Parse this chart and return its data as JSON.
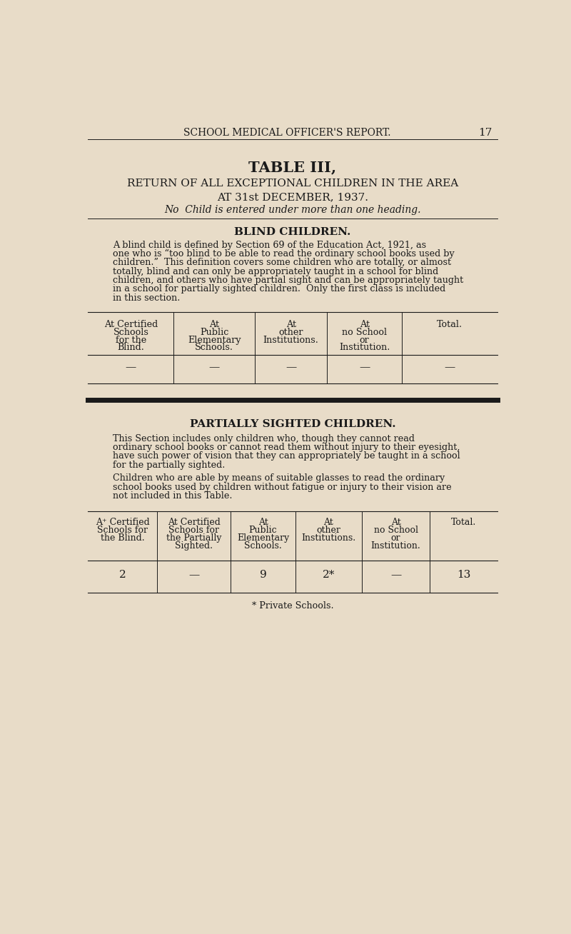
{
  "bg_color": "#e8dcc8",
  "text_color": "#1a1a1a",
  "page_header": "SCHOOL MEDICAL OFFICER'S REPORT.",
  "page_number": "17",
  "title_line1": "TABLE III,",
  "title_line2": "RETURN OF ALL EXCEPTIONAL CHILDREN IN THE AREA",
  "title_line3": "AT 31st DECEMBER, 1937.",
  "title_line4": "No  Child is entered under more than one heading.",
  "section1_title": "BLIND CHILDREN.",
  "blind_headers": [
    "At Certified\nSchools\nfor the\nBlind.",
    "At\nPublic\nElementary\nSchools.",
    "At\nother\nInstitutions.",
    "At\nno School\nor\nInstitution.",
    "Total."
  ],
  "blind_data": [
    "—",
    "—",
    "—",
    "—",
    "—"
  ],
  "section2_title": "PARTIALLY SIGHTED CHILDREN.",
  "partial_headers": [
    "A⁺ Certified\nSchools for\nthe Blind.",
    "At Certified\nSchools for\nthe Partially\nSighted.",
    "At\nPublic\nElementary\nSchools.",
    "At\nother\nInstitutions.",
    "At\nno School\nor\nInstitution.",
    "Total."
  ],
  "partial_data": [
    "2",
    "—",
    "9",
    "2*",
    "—",
    "13"
  ],
  "footnote": "* Private Schools.",
  "body1_lines": [
    "A blind child is defined by Section 69 of the Education Act, 1921, as",
    "one who is “too blind to be able to read the ordinary school books used by",
    "children.”  This definition covers some children who are totally, or almost",
    "totally, blind and can only be appropriately taught in a school for blind",
    "children, and others who have partial sight and can be appropriately taught",
    "in a school for partially sighted children.  Only the first class is included",
    "in this section."
  ],
  "body2_lines": [
    "This Section includes only children who, though they cannot read",
    "ordinary school books or cannot read them without injury to their eyesight,",
    "have such power of vision that they can appropriately be taught in a school",
    "for the partially sighted."
  ],
  "body3_lines": [
    "Children who are able by means of suitable glasses to read the ordinary",
    "school books used by children without fatigue or injury to their vision are",
    "​not included in this Table."
  ]
}
